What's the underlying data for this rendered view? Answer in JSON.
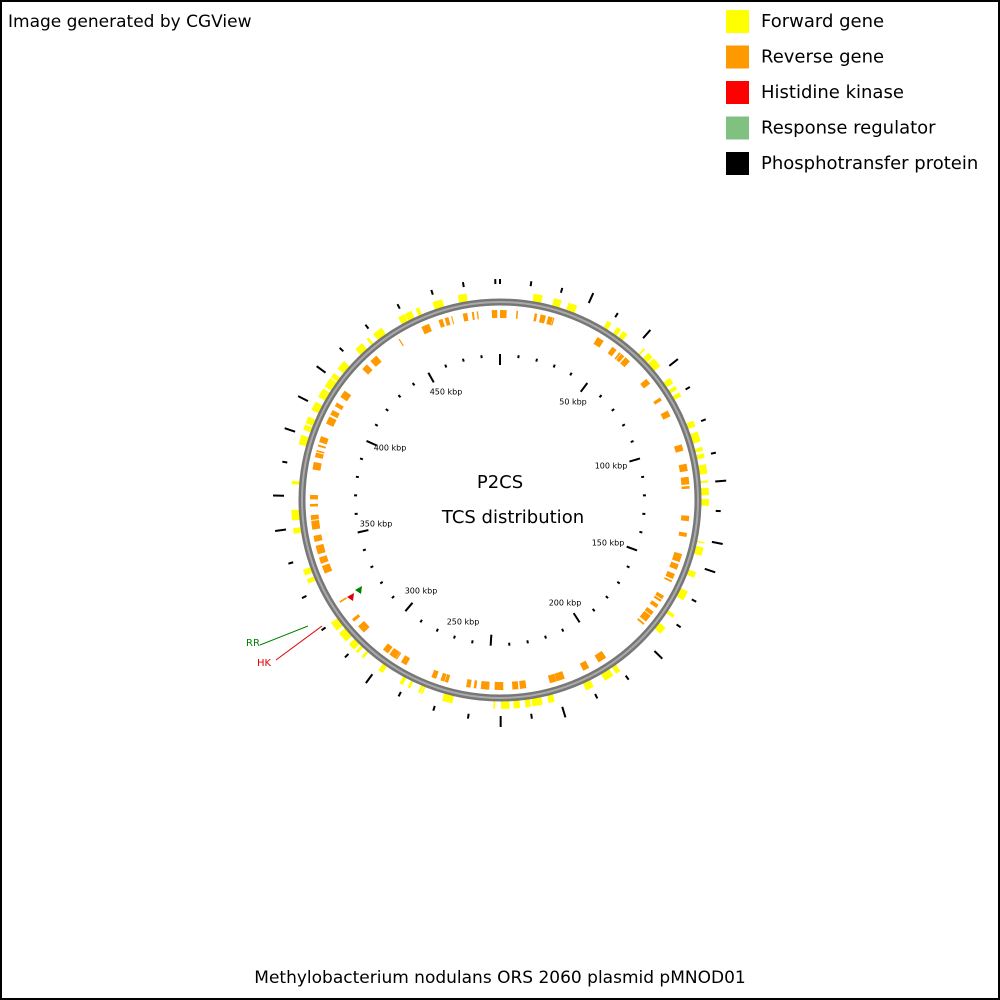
{
  "header": {
    "credit": "Image generated by CGView"
  },
  "legend": [
    {
      "label": "Forward gene",
      "color": "#ffff00"
    },
    {
      "label": "Reverse gene",
      "color": "#ff9900"
    },
    {
      "label": "Histidine kinase",
      "color": "#ff0000"
    },
    {
      "label": "Response regulator",
      "color": "#80c080"
    },
    {
      "label": "Phosphotransfer protein",
      "color": "#000000"
    }
  ],
  "center": {
    "title": "P2CS",
    "subtitle": "TCS distribution"
  },
  "tick_labels": [
    "50 kbp",
    "100 kbp",
    "150 kbp",
    "200 kbp",
    "250 kbp",
    "300 kbp",
    "350 kbp",
    "400 kbp",
    "450 kbp"
  ],
  "markers": [
    {
      "label": "RR",
      "color": "#008000"
    },
    {
      "label": "HK",
      "color": "#e00000"
    }
  ],
  "footer": {
    "caption": "Methylobacterium nodulans ORS 2060 plasmid pMNOD01"
  }
}
